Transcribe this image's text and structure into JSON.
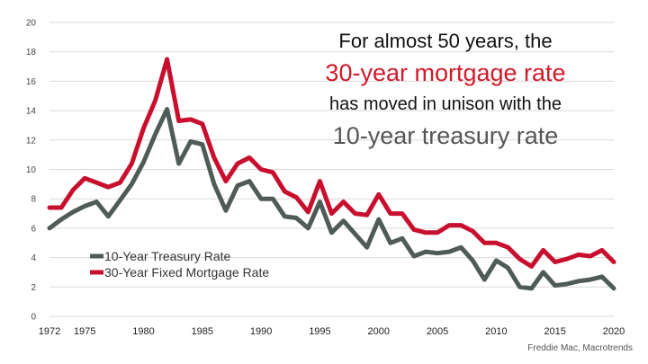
{
  "headline": {
    "line1": "For almost 50 years, the",
    "line2": "30-year mortgage rate",
    "line3": "has moved in unison with the",
    "line4": "10-year treasury rate"
  },
  "source": "Freddie Mac, Macrotrends",
  "colors": {
    "mortgage": "#c8102e",
    "treasury": "#4f5b57",
    "headline_accent": "#d11a2a",
    "headline_gray": "#555555"
  },
  "chart_data": {
    "type": "line",
    "title": "",
    "xlabel": "",
    "ylabel": "",
    "xlim": [
      1972,
      2020
    ],
    "ylim": [
      0,
      20
    ],
    "yticks": [
      0,
      2,
      4,
      6,
      8,
      10,
      12,
      14,
      16,
      18,
      20
    ],
    "xticks": [
      1972,
      1975,
      1980,
      1985,
      1990,
      1995,
      2000,
      2005,
      2010,
      2015,
      2020
    ],
    "grid": true,
    "legend_position": "bottom-left",
    "x": [
      1972,
      1973,
      1974,
      1975,
      1976,
      1977,
      1978,
      1979,
      1980,
      1981,
      1982,
      1983,
      1984,
      1985,
      1986,
      1987,
      1988,
      1989,
      1990,
      1991,
      1992,
      1993,
      1994,
      1995,
      1996,
      1997,
      1998,
      1999,
      2000,
      2001,
      2002,
      2003,
      2004,
      2005,
      2006,
      2007,
      2008,
      2009,
      2010,
      2011,
      2012,
      2013,
      2014,
      2015,
      2016,
      2017,
      2018,
      2019,
      2020
    ],
    "series": [
      {
        "name": "10-Year Treasury Rate",
        "color": "#4f5b57",
        "values": [
          6.0,
          6.6,
          7.1,
          7.5,
          7.8,
          6.8,
          7.9,
          9.0,
          10.5,
          12.4,
          14.1,
          10.4,
          11.9,
          11.7,
          9.0,
          7.2,
          8.9,
          9.2,
          8.0,
          8.0,
          6.8,
          6.7,
          6.0,
          7.8,
          5.7,
          6.5,
          5.6,
          4.7,
          6.6,
          5.0,
          5.3,
          4.1,
          4.4,
          4.3,
          4.4,
          4.7,
          3.8,
          2.5,
          3.8,
          3.3,
          2.0,
          1.9,
          3.0,
          2.1,
          2.2,
          2.4,
          2.5,
          2.7,
          1.9
        ]
      },
      {
        "name": "30-Year Fixed Mortgage Rate",
        "color": "#c8102e",
        "values": [
          7.4,
          7.4,
          8.6,
          9.4,
          9.1,
          8.8,
          9.1,
          10.4,
          12.8,
          14.7,
          17.5,
          13.3,
          13.4,
          13.1,
          10.8,
          9.2,
          10.4,
          10.8,
          10.0,
          9.8,
          8.5,
          8.1,
          7.1,
          9.2,
          7.0,
          7.8,
          7.0,
          6.9,
          8.3,
          7.0,
          7.0,
          5.9,
          5.7,
          5.7,
          6.2,
          6.2,
          5.8,
          5.0,
          5.0,
          4.7,
          3.9,
          3.4,
          4.5,
          3.7,
          3.9,
          4.2,
          4.1,
          4.5,
          3.7
        ]
      }
    ]
  }
}
